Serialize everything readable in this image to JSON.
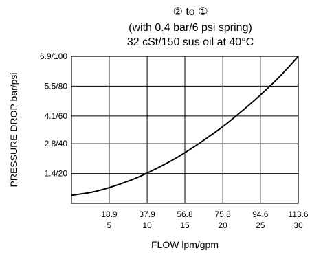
{
  "chart_data": {
    "type": "line",
    "title_lines": [
      "② to ①",
      "(with 0.4 bar/6 psi spring)",
      "32 cSt/150 sus oil at 40°C"
    ],
    "xlabel": "FLOW lpm/gpm",
    "ylabel": "PRESSURE DROP bar/psi",
    "xlim": [
      0,
      113.6
    ],
    "ylim": [
      0,
      6.9
    ],
    "x_ticks": [
      {
        "value": 18.9,
        "lpm": "18.9",
        "gpm": "5"
      },
      {
        "value": 37.9,
        "lpm": "37.9",
        "gpm": "10"
      },
      {
        "value": 56.8,
        "lpm": "56.8",
        "gpm": "15"
      },
      {
        "value": 75.8,
        "lpm": "75.8",
        "gpm": "20"
      },
      {
        "value": 94.6,
        "lpm": "94.6",
        "gpm": "25"
      },
      {
        "value": 113.6,
        "lpm": "113.6",
        "gpm": "30"
      }
    ],
    "y_ticks": [
      {
        "value": 1.4,
        "label": "1.4/20"
      },
      {
        "value": 2.8,
        "label": "2.8/40"
      },
      {
        "value": 4.1,
        "label": "4.1/60"
      },
      {
        "value": 5.5,
        "label": "5.5/80"
      },
      {
        "value": 6.9,
        "label": "6.9/100"
      }
    ],
    "grid": true,
    "line_color": "#000000",
    "series": [
      {
        "x": [
          0,
          10,
          18.9,
          30,
          37.9,
          50,
          56.8,
          65,
          75.8,
          85,
          94.6,
          105,
          113.6
        ],
        "values": [
          0.38,
          0.52,
          0.74,
          1.1,
          1.42,
          2.0,
          2.38,
          2.88,
          3.6,
          4.3,
          5.08,
          6.02,
          6.9
        ]
      }
    ]
  }
}
